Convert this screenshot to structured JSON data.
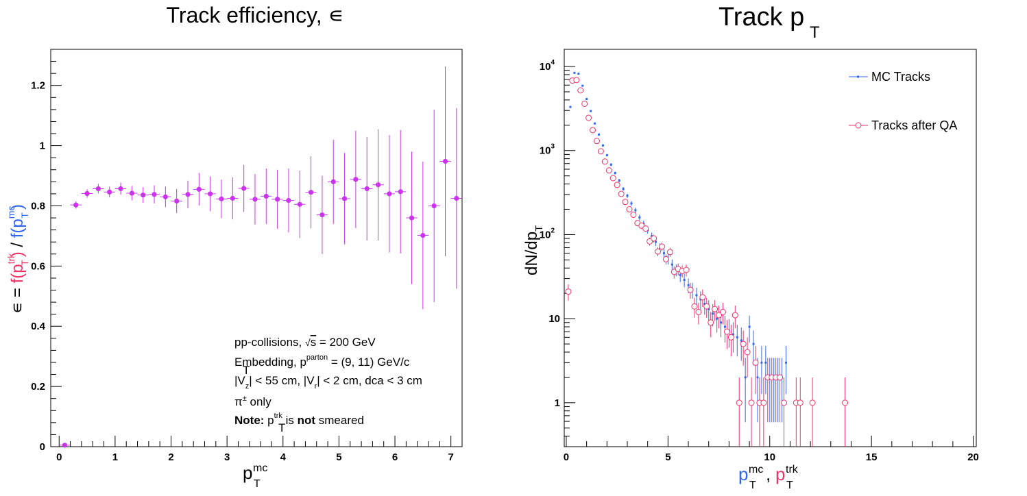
{
  "colors": {
    "efficiency": "#cc33ee",
    "mc": "#3366ee",
    "trk": "#ee3366",
    "axis": "#000000"
  },
  "chart_data": [
    {
      "type": "scatter",
      "title": "Track efficiency, ∊",
      "title_sym": "∊",
      "xlabel": {
        "main": "p",
        "sub": "T",
        "sup": "mc"
      },
      "ylabel": {
        "prefix": "∊ = ",
        "num": "f(p",
        "num_sup": "trk",
        "num_sub": "T",
        "close": ")",
        "div": " / ",
        "den": "f(p",
        "den_sup": "mc",
        "den_sub": "T"
      },
      "xlim": [
        -0.15,
        7.2
      ],
      "ylim": [
        0,
        1.32
      ],
      "xticks": [
        0,
        1,
        2,
        3,
        4,
        5,
        6,
        7
      ],
      "yticks": [
        0,
        0.2,
        0.4,
        0.6,
        0.8,
        1,
        1.2
      ],
      "ytick_labels": [
        "0",
        "0.2",
        "0.4",
        "0.6",
        "0.8",
        "1",
        "1.2"
      ],
      "xerr": 0.1,
      "series": [
        {
          "x": [
            0.1,
            0.3,
            0.5,
            0.7,
            0.9,
            1.1,
            1.3,
            1.5,
            1.7,
            1.9,
            2.1,
            2.3,
            2.5,
            2.7,
            2.9,
            3.1,
            3.3,
            3.5,
            3.7,
            3.9,
            4.1,
            4.3,
            4.5,
            4.7,
            4.9,
            5.1,
            5.3,
            5.5,
            5.7,
            5.9,
            6.1,
            6.3,
            6.5,
            6.7,
            6.9,
            7.1
          ],
          "y": [
            0.005,
            0.803,
            0.841,
            0.857,
            0.846,
            0.857,
            0.842,
            0.836,
            0.838,
            0.83,
            0.816,
            0.838,
            0.855,
            0.84,
            0.823,
            0.825,
            0.858,
            0.822,
            0.832,
            0.822,
            0.818,
            0.805,
            0.845,
            0.77,
            0.88,
            0.824,
            0.888,
            0.857,
            0.87,
            0.84,
            0.847,
            0.76,
            0.702,
            0.8,
            0.948,
            0.825
          ],
          "err": [
            0.003,
            0.012,
            0.014,
            0.016,
            0.018,
            0.02,
            0.024,
            0.026,
            0.03,
            0.034,
            0.04,
            0.046,
            0.054,
            0.058,
            0.064,
            0.07,
            0.078,
            0.084,
            0.092,
            0.098,
            0.106,
            0.112,
            0.12,
            0.13,
            0.14,
            0.152,
            0.162,
            0.172,
            0.185,
            0.195,
            0.205,
            0.22,
            0.245,
            0.32,
            0.315,
            0.3
          ]
        }
      ],
      "annotations": [
        {
          "pre": "pp-collisions, ",
          "sqrt": "√",
          "sqrt_arg": "s",
          "post": " = 200 GeV"
        },
        {
          "pre": "Embedding, p",
          "sub": "T",
          "sup": "parton",
          "post": " = (9, 11) GeV/c"
        },
        {
          "a": "|V",
          "a_sub": "z",
          "b": "| < 55 cm, |V",
          "b_sub": "r",
          "c": "| < 2 cm, dca < 3 cm"
        },
        {
          "pre": "π",
          "sup": "±",
          "post": " only"
        },
        {
          "bold1": "Note:",
          "mid1": " p",
          "sub": "T",
          "sup": "trk",
          "mid2": " is ",
          "bold2": "not",
          "post": " smeared"
        }
      ]
    },
    {
      "type": "scatter",
      "title": {
        "main": "Track p",
        "sub": "T"
      },
      "xlabel": {
        "a": "p",
        "a_sub": "T",
        "a_sup": "mc",
        "sep": ", ",
        "b": "p",
        "b_sub": "T",
        "b_sup": "trk"
      },
      "ylabel": {
        "main": "dN/dp",
        "sub": "T"
      },
      "xlim": [
        -0.1,
        20.15
      ],
      "ylim": [
        0.3,
        16000
      ],
      "log_y": true,
      "xticks": [
        0,
        5,
        10,
        15,
        20
      ],
      "yticks": [
        1,
        10,
        100,
        1000,
        10000
      ],
      "ytick_labels": [
        {
          "base": "1"
        },
        {
          "base": "10"
        },
        {
          "base": "10",
          "exp": "2"
        },
        {
          "base": "10",
          "exp": "3"
        },
        {
          "base": "10",
          "exp": "4"
        }
      ],
      "legend": {
        "placement": "top-right"
      },
      "series": [
        {
          "name": "MC Tracks",
          "x": [
            0.1,
            0.3,
            0.5,
            0.7,
            0.9,
            1.1,
            1.3,
            1.5,
            1.7,
            1.9,
            2.1,
            2.3,
            2.5,
            2.7,
            2.9,
            3.1,
            3.3,
            3.5,
            3.7,
            3.9,
            4.1,
            4.3,
            4.5,
            4.7,
            4.9,
            5.1,
            5.3,
            5.5,
            5.7,
            5.9,
            6.1,
            6.3,
            6.5,
            6.7,
            6.9,
            7.1,
            7.3,
            7.5,
            7.7,
            7.9,
            8.1,
            8.3,
            8.5,
            8.7,
            8.9,
            9.1,
            9.3,
            9.5,
            9.7,
            9.9,
            10.1,
            10.3,
            10.5,
            10.7
          ],
          "y": [
            3300,
            8400,
            8200,
            5900,
            4100,
            2950,
            2100,
            1550,
            1150,
            880,
            680,
            540,
            440,
            350,
            290,
            235,
            195,
            160,
            135,
            113,
            96,
            82,
            70,
            60,
            51,
            44,
            38,
            33,
            29,
            25,
            22,
            19,
            17,
            15,
            13,
            11.5,
            10,
            9,
            8,
            7.2,
            6.5,
            6,
            5.5,
            2,
            8,
            5,
            2,
            3,
            3,
            2,
            2,
            2,
            2,
            3
          ]
        },
        {
          "name": "Tracks after QA",
          "x": [
            0.1,
            0.3,
            0.5,
            0.7,
            0.9,
            1.1,
            1.3,
            1.5,
            1.7,
            1.9,
            2.1,
            2.3,
            2.5,
            2.7,
            2.9,
            3.1,
            3.3,
            3.5,
            3.7,
            3.9,
            4.1,
            4.3,
            4.5,
            4.7,
            4.9,
            5.1,
            5.3,
            5.5,
            5.7,
            5.9,
            6.1,
            6.3,
            6.5,
            6.7,
            6.9,
            7.1,
            7.3,
            7.5,
            7.7,
            7.9,
            8.1,
            8.3,
            8.5,
            8.7,
            8.9,
            9.1,
            9.3,
            9.5,
            9.7,
            9.9,
            10.1,
            10.3,
            10.5,
            10.7,
            11.3,
            11.5,
            12.1,
            13.7
          ],
          "y": [
            21,
            6800,
            6900,
            5200,
            3600,
            2450,
            1750,
            1300,
            980,
            740,
            580,
            470,
            390,
            305,
            245,
            200,
            172,
            137,
            128,
            118,
            83,
            90,
            63,
            72,
            51,
            62,
            36,
            39,
            37,
            38,
            22,
            14,
            12,
            18,
            14,
            9,
            13,
            11,
            12,
            7,
            6,
            11,
            1,
            5,
            4,
            1,
            3,
            1,
            1,
            2,
            2,
            2,
            2,
            1,
            1,
            1,
            1,
            1
          ]
        }
      ]
    }
  ]
}
